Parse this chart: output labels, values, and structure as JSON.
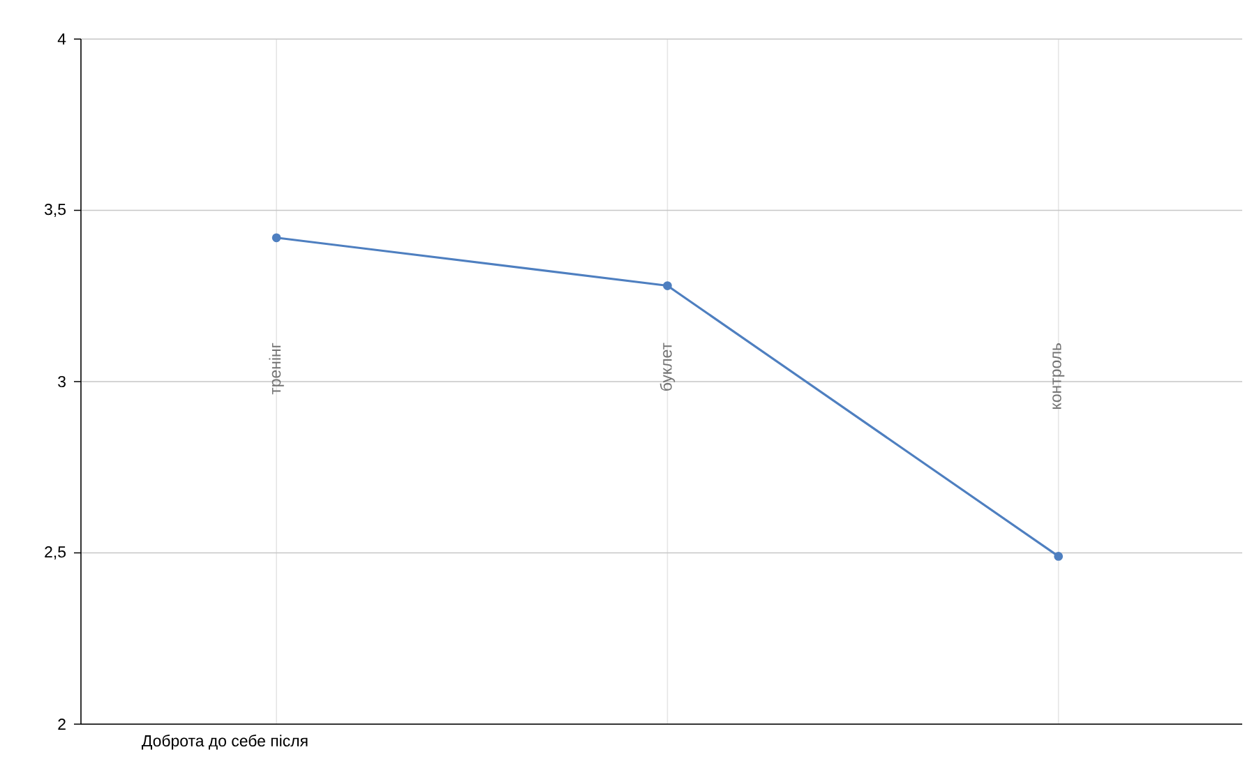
{
  "chart_data": {
    "type": "line",
    "xlabel": "Доброта до себе після",
    "categories": [
      "тренінг",
      "буклет",
      "контроль"
    ],
    "series": [
      {
        "color": "#4e7fc0",
        "values": [
          3.42,
          3.28,
          2.49
        ]
      }
    ],
    "ylim": [
      2,
      4
    ],
    "yticks": [
      2,
      {
        "value": 2.5,
        "label": "2,5"
      },
      3,
      {
        "value": 3.5,
        "label": "3,5"
      },
      4
    ],
    "grid": true,
    "marker": "circle",
    "line_style": "solid"
  }
}
